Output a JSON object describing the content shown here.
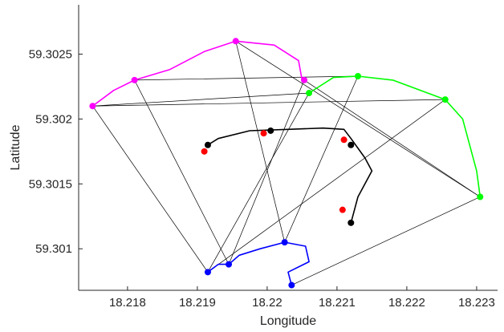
{
  "chart_data": {
    "type": "scatter",
    "xlabel": "Longitude",
    "ylabel": "Latitude",
    "xlim": [
      18.2173,
      18.2233
    ],
    "ylim": [
      59.30068,
      59.30288
    ],
    "x_ticks": [
      {
        "value": 18.218,
        "label": "18.218"
      },
      {
        "value": 18.219,
        "label": "18.219"
      },
      {
        "value": 18.22,
        "label": "18.22"
      },
      {
        "value": 18.221,
        "label": "18.221"
      },
      {
        "value": 18.222,
        "label": "18.222"
      },
      {
        "value": 18.223,
        "label": "18.223"
      }
    ],
    "y_ticks": [
      {
        "value": 59.301,
        "label": "59.301"
      },
      {
        "value": 59.3015,
        "label": "59.3015"
      },
      {
        "value": 59.302,
        "label": "59.302"
      },
      {
        "value": 59.3025,
        "label": "59.3025"
      }
    ],
    "grid": false,
    "colors": {
      "magenta": "#ff00ff",
      "green": "#00ff00",
      "blue": "#0000ff",
      "black": "#000000",
      "red": "#ff0000",
      "connector": "#000000"
    },
    "paths": [
      {
        "color": "magenta",
        "points": [
          [
            18.2175,
            59.3021
          ],
          [
            18.2178,
            59.30222
          ],
          [
            18.2181,
            59.3023
          ],
          [
            18.2186,
            59.30238
          ],
          [
            18.2191,
            59.30252
          ],
          [
            18.21955,
            59.3026
          ],
          [
            18.2201,
            59.30257
          ],
          [
            18.22045,
            59.30245
          ],
          [
            18.2205,
            59.3023
          ]
        ]
      },
      {
        "color": "green",
        "points": [
          [
            18.2206,
            59.3022
          ],
          [
            18.22095,
            59.30232
          ],
          [
            18.2213,
            59.30233
          ],
          [
            18.2218,
            59.3023
          ],
          [
            18.22255,
            59.30215
          ],
          [
            18.2228,
            59.302
          ],
          [
            18.2229,
            59.3018
          ],
          [
            18.223,
            59.3016
          ],
          [
            18.22305,
            59.3014
          ]
        ]
      },
      {
        "color": "blue",
        "points": [
          [
            18.21915,
            59.30082
          ],
          [
            18.2193,
            59.30088
          ],
          [
            18.21945,
            59.30088
          ],
          [
            18.2196,
            59.30095
          ],
          [
            18.2199,
            59.301
          ],
          [
            18.22025,
            59.30105
          ],
          [
            18.22055,
            59.30102
          ],
          [
            18.2206,
            59.3009
          ],
          [
            18.2203,
            59.30082
          ],
          [
            18.22035,
            59.30072
          ]
        ]
      },
      {
        "color": "black",
        "points": [
          [
            18.21915,
            59.3018
          ],
          [
            18.2193,
            59.30185
          ],
          [
            18.21975,
            59.30191
          ],
          [
            18.2203,
            59.30192
          ],
          [
            18.2208,
            59.30193
          ],
          [
            18.2211,
            59.30192
          ],
          [
            18.2212,
            59.30185
          ],
          [
            18.2214,
            59.3017
          ],
          [
            18.2215,
            59.3016
          ],
          [
            18.2213,
            59.3014
          ],
          [
            18.2212,
            59.3012
          ]
        ]
      }
    ],
    "points": [
      {
        "color": "magenta",
        "x": 18.2175,
        "y": 59.3021
      },
      {
        "color": "magenta",
        "x": 18.2181,
        "y": 59.3023
      },
      {
        "color": "magenta",
        "x": 18.21955,
        "y": 59.3026
      },
      {
        "color": "magenta",
        "x": 18.22053,
        "y": 59.3023
      },
      {
        "color": "green",
        "x": 18.2206,
        "y": 59.3022
      },
      {
        "color": "green",
        "x": 18.2213,
        "y": 59.30233
      },
      {
        "color": "green",
        "x": 18.22255,
        "y": 59.30215
      },
      {
        "color": "green",
        "x": 18.22305,
        "y": 59.3014
      },
      {
        "color": "blue",
        "x": 18.21915,
        "y": 59.30082
      },
      {
        "color": "blue",
        "x": 18.21945,
        "y": 59.30088
      },
      {
        "color": "blue",
        "x": 18.22025,
        "y": 59.30105
      },
      {
        "color": "blue",
        "x": 18.22035,
        "y": 59.30072
      },
      {
        "color": "black",
        "x": 18.21915,
        "y": 59.3018
      },
      {
        "color": "black",
        "x": 18.22005,
        "y": 59.30191
      },
      {
        "color": "black",
        "x": 18.2212,
        "y": 59.3018
      },
      {
        "color": "black",
        "x": 18.2212,
        "y": 59.3012
      },
      {
        "color": "red",
        "x": 18.2191,
        "y": 59.30175
      },
      {
        "color": "red",
        "x": 18.21995,
        "y": 59.30189
      },
      {
        "color": "red",
        "x": 18.2211,
        "y": 59.30184
      },
      {
        "color": "red",
        "x": 18.22108,
        "y": 59.3013
      }
    ],
    "connections": [
      [
        [
          18.2175,
          59.3021
        ],
        [
          18.21915,
          59.30082
        ]
      ],
      [
        [
          18.2175,
          59.3021
        ],
        [
          18.2206,
          59.3022
        ]
      ],
      [
        [
          18.2175,
          59.3021
        ],
        [
          18.22255,
          59.30215
        ]
      ],
      [
        [
          18.2181,
          59.3023
        ],
        [
          18.2213,
          59.30233
        ]
      ],
      [
        [
          18.2181,
          59.3023
        ],
        [
          18.21945,
          59.30088
        ]
      ],
      [
        [
          18.21955,
          59.3026
        ],
        [
          18.22305,
          59.3014
        ]
      ],
      [
        [
          18.21955,
          59.3026
        ],
        [
          18.22025,
          59.30105
        ]
      ],
      [
        [
          18.22053,
          59.3023
        ],
        [
          18.21945,
          59.30088
        ]
      ],
      [
        [
          18.22053,
          59.3023
        ],
        [
          18.22305,
          59.3014
        ]
      ],
      [
        [
          18.2206,
          59.3022
        ],
        [
          18.21915,
          59.30082
        ]
      ],
      [
        [
          18.2213,
          59.30233
        ],
        [
          18.22025,
          59.30105
        ]
      ],
      [
        [
          18.22255,
          59.30215
        ],
        [
          18.21915,
          59.30082
        ]
      ],
      [
        [
          18.22305,
          59.3014
        ],
        [
          18.22035,
          59.30072
        ]
      ]
    ]
  }
}
